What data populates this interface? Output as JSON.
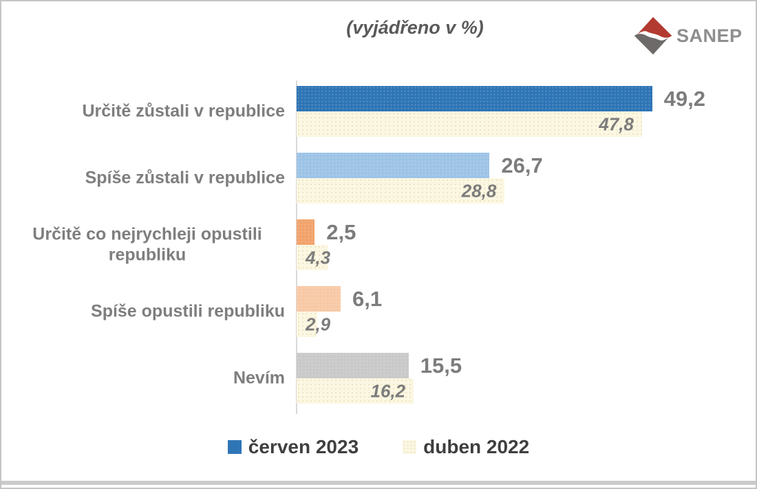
{
  "title": "(vyjádřeno v %)",
  "logo": {
    "text": "SANEP",
    "diamond_red": "#B23A31",
    "diamond_gray": "#6E6A6A",
    "text_color": "#8E8E8E"
  },
  "legend": [
    {
      "label": "červen 2023",
      "color": "#2E75B6"
    },
    {
      "label": "duben 2022",
      "color": "#FBF7E2"
    }
  ],
  "chart_data": {
    "type": "bar",
    "orientation": "horizontal",
    "title": "(vyjádřeno v %)",
    "unit": "%",
    "categories": [
      "Určitě zůstali v republice",
      "Spíše zůstali v republice",
      "Určitě co nejrychleji opustili republiku",
      "Spíše opustili republiku",
      "Nevím"
    ],
    "series": [
      {
        "name": "červen 2023",
        "values": [
          49.2,
          26.7,
          2.5,
          6.1,
          15.5
        ],
        "labels": [
          "49,2",
          "26,7",
          "2,5",
          "6,1",
          "15,5"
        ],
        "bar_colors": [
          "#2E75B6",
          "#9DC3E6",
          "#F2A36B",
          "#F8C9A6",
          "#C9C9C9"
        ]
      },
      {
        "name": "duben 2022",
        "values": [
          47.8,
          28.8,
          4.3,
          2.9,
          16.2
        ],
        "labels": [
          "47,8",
          "28,8",
          "4,3",
          "2,9",
          "16,2"
        ],
        "bar_color": "#FBF7E2",
        "bar_dot_color": "#EDE5C4"
      }
    ],
    "value_axis": {
      "min": 0,
      "implied_max": 55,
      "line_visible": true
    },
    "gridlines": false,
    "legend_position": "bottom"
  },
  "colors": {
    "value_label": "#7C7C7C",
    "category_label": "#7E7E7E",
    "legend_text": "#3F3F3F",
    "title_text": "#595959",
    "axis_line": "#D9D9D9",
    "page_border": "#C5C5C5",
    "bottom_band": "#CBCBCB"
  }
}
